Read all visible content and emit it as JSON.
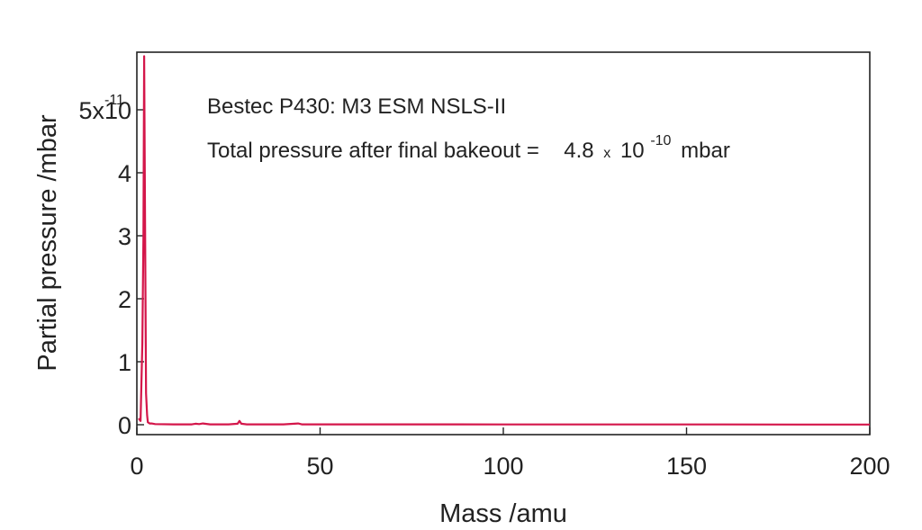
{
  "chart_data": {
    "type": "line",
    "xlabel": "Mass /amu",
    "ylabel": "Partial pressure /mbar",
    "xlim": [
      0,
      200
    ],
    "ylim": [
      0,
      5.9e-11
    ],
    "x_ticks": [
      0,
      50,
      100,
      150,
      200
    ],
    "x_tick_labels": [
      "0",
      "50",
      "100",
      "150",
      "200"
    ],
    "y_ticks": [
      0,
      1e-11,
      2e-11,
      3e-11,
      4e-11,
      5e-11
    ],
    "y_tick_labels": [
      "0",
      "1",
      "2",
      "3",
      "4",
      "5x10"
    ],
    "y_exponent": "-11",
    "grid": false,
    "line_color": "#d4164a",
    "annotations": {
      "line1": "Bestec P430: M3 ESM NSLS-II",
      "line2_prefix": "Total pressure after final bakeout = ",
      "line2_mantissa": "4.8",
      "line2_times": "x",
      "line2_base": "10",
      "line2_exponent": "-10",
      "line2_unit": "mbar"
    },
    "series": [
      {
        "x": [
          0.5,
          1.0,
          1.5,
          1.8,
          2.0,
          2.2,
          2.5,
          2.8,
          3.0,
          3.5,
          4,
          5,
          10,
          15,
          16,
          17,
          18,
          20,
          25,
          27.5,
          28,
          28.5,
          30,
          40,
          44,
          45,
          50,
          60,
          70,
          80,
          100,
          120,
          140,
          160,
          180,
          200
        ],
        "y": [
          1e-12,
          6e-13,
          1.3e-11,
          3e-11,
          5.85e-11,
          3.5e-11,
          5e-12,
          1.5e-12,
          4e-13,
          2e-13,
          2e-13,
          1e-13,
          5e-14,
          5e-14,
          1.5e-13,
          1e-13,
          2e-13,
          5e-14,
          5e-14,
          1.5e-13,
          6e-13,
          1.5e-13,
          5e-14,
          5e-14,
          2e-13,
          5e-14,
          5e-14,
          5e-14,
          5e-14,
          5e-14,
          4e-14,
          4e-14,
          4e-14,
          4e-14,
          3e-14,
          3e-14
        ]
      }
    ]
  }
}
